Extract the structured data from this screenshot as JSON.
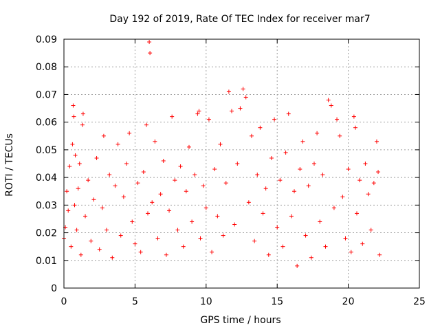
{
  "chart_data": {
    "type": "scatter",
    "title": "Day 192 of 2019, Rate Of TEC Index for receiver mar7",
    "xlabel": "GPS time / hours",
    "ylabel": "ROTI / TECUs",
    "xlim": [
      0,
      25
    ],
    "ylim": [
      0,
      0.09
    ],
    "xticks": [
      0,
      5,
      10,
      15,
      20,
      25
    ],
    "yticks": [
      0,
      0.01,
      0.02,
      0.03,
      0.04,
      0.05,
      0.06,
      0.07,
      0.08,
      0.09
    ],
    "xtick_labels": [
      "0",
      "5",
      "10",
      "15",
      "20",
      "25"
    ],
    "ytick_labels": [
      "0",
      "0.01",
      "0.02",
      "0.03",
      "0.04",
      "0.05",
      "0.06",
      "0.07",
      "0.08",
      "0.09"
    ],
    "grid": true,
    "marker": "plus",
    "color": "#ff0000",
    "series": [
      {
        "points": [
          [
            0.0,
            0.018
          ],
          [
            0.1,
            0.022
          ],
          [
            0.2,
            0.035
          ],
          [
            0.3,
            0.028
          ],
          [
            0.4,
            0.044
          ],
          [
            0.5,
            0.015
          ],
          [
            0.6,
            0.052
          ],
          [
            0.65,
            0.066
          ],
          [
            0.7,
            0.062
          ],
          [
            0.75,
            0.03
          ],
          [
            0.8,
            0.048
          ],
          [
            0.9,
            0.021
          ],
          [
            1.0,
            0.036
          ],
          [
            1.1,
            0.045
          ],
          [
            1.2,
            0.012
          ],
          [
            1.3,
            0.059
          ],
          [
            1.35,
            0.063
          ],
          [
            1.5,
            0.026
          ],
          [
            1.7,
            0.039
          ],
          [
            1.9,
            0.017
          ],
          [
            2.1,
            0.032
          ],
          [
            2.3,
            0.047
          ],
          [
            2.5,
            0.014
          ],
          [
            2.7,
            0.029
          ],
          [
            2.8,
            0.055
          ],
          [
            3.0,
            0.021
          ],
          [
            3.2,
            0.041
          ],
          [
            3.4,
            0.011
          ],
          [
            3.6,
            0.037
          ],
          [
            3.8,
            0.052
          ],
          [
            4.0,
            0.019
          ],
          [
            4.2,
            0.033
          ],
          [
            4.4,
            0.045
          ],
          [
            4.6,
            0.056
          ],
          [
            4.8,
            0.024
          ],
          [
            5.0,
            0.016
          ],
          [
            5.2,
            0.038
          ],
          [
            5.4,
            0.013
          ],
          [
            5.6,
            0.042
          ],
          [
            5.8,
            0.059
          ],
          [
            5.9,
            0.027
          ],
          [
            6.0,
            0.089
          ],
          [
            6.05,
            0.085
          ],
          [
            6.2,
            0.031
          ],
          [
            6.4,
            0.053
          ],
          [
            6.6,
            0.018
          ],
          [
            6.8,
            0.034
          ],
          [
            7.0,
            0.046
          ],
          [
            7.2,
            0.012
          ],
          [
            7.4,
            0.028
          ],
          [
            7.6,
            0.062
          ],
          [
            7.8,
            0.039
          ],
          [
            8.0,
            0.021
          ],
          [
            8.2,
            0.044
          ],
          [
            8.4,
            0.015
          ],
          [
            8.6,
            0.035
          ],
          [
            8.8,
            0.051
          ],
          [
            9.0,
            0.024
          ],
          [
            9.2,
            0.041
          ],
          [
            9.4,
            0.063
          ],
          [
            9.5,
            0.064
          ],
          [
            9.6,
            0.018
          ],
          [
            9.8,
            0.037
          ],
          [
            10.0,
            0.029
          ],
          [
            10.2,
            0.061
          ],
          [
            10.4,
            0.013
          ],
          [
            10.6,
            0.043
          ],
          [
            10.8,
            0.026
          ],
          [
            11.0,
            0.052
          ],
          [
            11.2,
            0.019
          ],
          [
            11.4,
            0.038
          ],
          [
            11.6,
            0.071
          ],
          [
            11.8,
            0.064
          ],
          [
            12.0,
            0.023
          ],
          [
            12.2,
            0.045
          ],
          [
            12.4,
            0.065
          ],
          [
            12.6,
            0.072
          ],
          [
            12.8,
            0.069
          ],
          [
            13.0,
            0.031
          ],
          [
            13.2,
            0.055
          ],
          [
            13.4,
            0.017
          ],
          [
            13.6,
            0.041
          ],
          [
            13.8,
            0.058
          ],
          [
            14.0,
            0.027
          ],
          [
            14.2,
            0.036
          ],
          [
            14.4,
            0.012
          ],
          [
            14.6,
            0.047
          ],
          [
            14.8,
            0.061
          ],
          [
            15.0,
            0.022
          ],
          [
            15.2,
            0.039
          ],
          [
            15.4,
            0.015
          ],
          [
            15.6,
            0.049
          ],
          [
            15.8,
            0.063
          ],
          [
            16.0,
            0.026
          ],
          [
            16.2,
            0.035
          ],
          [
            16.4,
            0.008
          ],
          [
            16.6,
            0.043
          ],
          [
            16.8,
            0.053
          ],
          [
            17.0,
            0.019
          ],
          [
            17.2,
            0.037
          ],
          [
            17.4,
            0.011
          ],
          [
            17.6,
            0.045
          ],
          [
            17.8,
            0.056
          ],
          [
            18.0,
            0.024
          ],
          [
            18.2,
            0.041
          ],
          [
            18.4,
            0.015
          ],
          [
            18.6,
            0.068
          ],
          [
            18.8,
            0.066
          ],
          [
            19.0,
            0.029
          ],
          [
            19.2,
            0.061
          ],
          [
            19.4,
            0.055
          ],
          [
            19.6,
            0.033
          ],
          [
            19.8,
            0.018
          ],
          [
            20.0,
            0.043
          ],
          [
            20.2,
            0.013
          ],
          [
            20.4,
            0.062
          ],
          [
            20.5,
            0.058
          ],
          [
            20.6,
            0.027
          ],
          [
            20.8,
            0.039
          ],
          [
            21.0,
            0.016
          ],
          [
            21.2,
            0.045
          ],
          [
            21.4,
            0.034
          ],
          [
            21.6,
            0.021
          ],
          [
            21.8,
            0.038
          ],
          [
            22.0,
            0.053
          ],
          [
            22.1,
            0.042
          ],
          [
            22.2,
            0.012
          ]
        ]
      }
    ]
  }
}
